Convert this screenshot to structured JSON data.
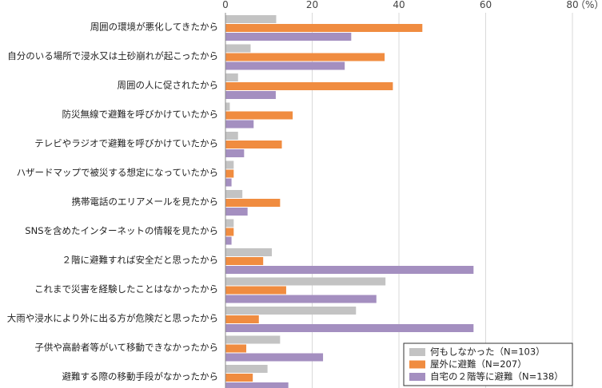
{
  "chart_data": {
    "type": "bar",
    "orientation": "horizontal",
    "categories": [
      "周囲の環境が悪化してきたから",
      "自分のいる場所で浸水又は土砂崩れが起こったから",
      "周囲の人に促されたから",
      "防災無線で避難を呼びかけていたから",
      "テレビやラジオで避難を呼びかけていたから",
      "ハザードマップで被災する想定になっていたから",
      "携帯電話のエリアメールを見たから",
      "SNSを含めたインターネットの情報を見たから",
      "２階に避難すれば安全だと思ったから",
      "これまで災害を経験したことはなかったから",
      "大雨や浸水により外に出る方が危険だと思ったから",
      "子供や高齢者等がいて移動できなかったから",
      "避難する際の移動手段がなかったから"
    ],
    "series": [
      {
        "name": "何もしなかった（N=103）",
        "color": "#c3c3c3",
        "values": [
          11.7,
          5.8,
          2.9,
          1.0,
          2.9,
          1.9,
          3.9,
          1.9,
          10.7,
          36.9,
          30.1,
          12.6,
          9.7
        ]
      },
      {
        "name": "屋外に避難（N=207）",
        "color": "#f08c40",
        "values": [
          45.4,
          36.7,
          38.6,
          15.5,
          13.0,
          1.9,
          12.6,
          1.9,
          8.7,
          14.0,
          7.7,
          4.8,
          6.3
        ]
      },
      {
        "name": "自宅の２階等に避難（N=138）",
        "color": "#a48fc0",
        "values": [
          29.0,
          27.5,
          11.6,
          6.5,
          4.3,
          1.4,
          5.1,
          1.4,
          57.2,
          34.8,
          57.2,
          22.5,
          14.5
        ]
      }
    ],
    "xlim": [
      0,
      80
    ],
    "xticks": [
      "0",
      "20",
      "40",
      "60",
      "80"
    ],
    "unit_label": "（%）",
    "grid": true,
    "legend_position": "bottom-right"
  }
}
